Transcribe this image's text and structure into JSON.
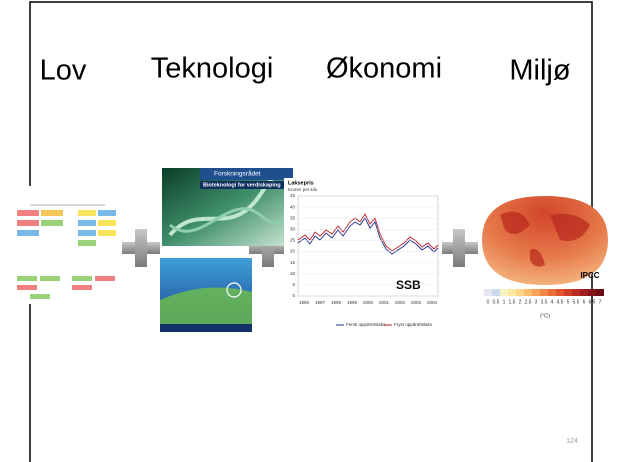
{
  "headings": [
    "Lov",
    "Teknologi",
    "Økonomi",
    "Miljø"
  ],
  "dna_image": {
    "logo": "Forskningsrådet",
    "banner": "Bioteknologi for verdiskaping"
  },
  "price_chart": {
    "title": "Laksepris",
    "ylabel": "Kroner per kilo",
    "yticks": [
      "45",
      "40",
      "35",
      "30",
      "25",
      "20",
      "15",
      "10",
      "5",
      "0"
    ],
    "xticks": [
      "1996",
      "1997",
      "1998",
      "1999",
      "2000",
      "2001",
      "2002",
      "2003",
      "2004"
    ],
    "legend": [
      "Fersk oppdrettslaks",
      "Fryst oppdrettslaks"
    ],
    "source": "SSB"
  },
  "climate_map": {
    "source": "IPCC",
    "scale": [
      "0",
      "0.5",
      "1",
      "1.5",
      "2",
      "2.5",
      "3",
      "3.5",
      "4",
      "4.5",
      "5",
      "5.5",
      "6",
      "6.5",
      "7"
    ],
    "unit": "(°C)"
  },
  "page_number": "124"
}
